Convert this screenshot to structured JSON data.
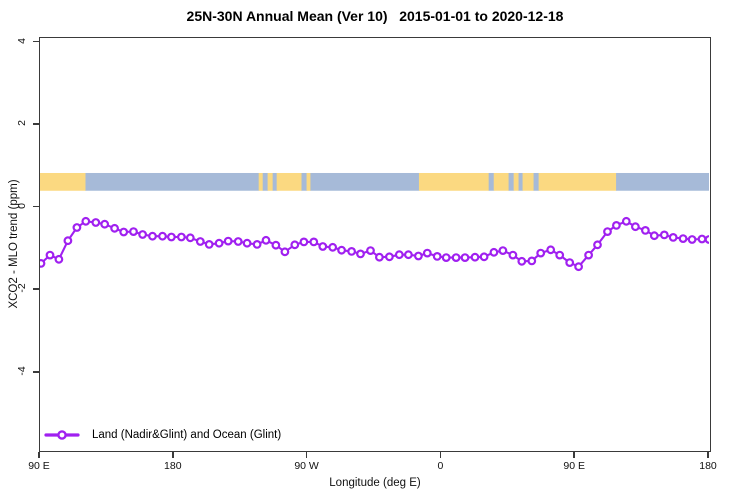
{
  "title": "25N-30N Annual Mean (Ver 10)   2015-01-01 to 2020-12-18",
  "chart_data": {
    "type": "line",
    "title": "25N-30N Annual Mean (Ver 10)   2015-01-01 to 2020-12-18",
    "xlabel": "Longitude (deg E)",
    "ylabel": "XCO2 - MLO trend (ppm)",
    "xlim_deg_along_axis": [
      0,
      450
    ],
    "ylim": [
      -5.87,
      4.11
    ],
    "grid": false,
    "x_ticks": [
      {
        "pos": 0,
        "label": "90 E"
      },
      {
        "pos": 90,
        "label": "180"
      },
      {
        "pos": 180,
        "label": "90 W"
      },
      {
        "pos": 270,
        "label": "0"
      },
      {
        "pos": 360,
        "label": "90 E"
      },
      {
        "pos": 450,
        "label": "180"
      }
    ],
    "y_ticks": [
      {
        "value": 4,
        "label": "4"
      },
      {
        "value": 2,
        "label": "2"
      },
      {
        "value": 0,
        "label": "0"
      },
      {
        "value": -2,
        "label": "-2"
      },
      {
        "value": -4,
        "label": "-4"
      }
    ],
    "legend": {
      "position": "bottom-left",
      "entries": [
        {
          "label": "Land (Nadir&Glint) and Ocean (Glint)",
          "color": "#A020F0",
          "marker": "open-circle"
        }
      ]
    },
    "colors": {
      "series": "#A020F0",
      "marker_fill": "#ffffff",
      "land_strip": "#FBD981",
      "ocean_strip": "#A6BAD8",
      "axis": "#3a3a3a"
    },
    "map_strip": {
      "description": "25N-30N latitude land/ocean strip drawn across plot",
      "value_range": [
        0.41,
        0.84
      ],
      "segments": [
        {
          "from": 0,
          "to": 30.8,
          "type": "land"
        },
        {
          "from": 30.8,
          "to": 147.3,
          "type": "ocean"
        },
        {
          "from": 147.3,
          "to": 150.0,
          "type": "land"
        },
        {
          "from": 150.0,
          "to": 153.3,
          "type": "ocean"
        },
        {
          "from": 153.3,
          "to": 156.7,
          "type": "land"
        },
        {
          "from": 156.7,
          "to": 159.4,
          "type": "ocean"
        },
        {
          "from": 159.4,
          "to": 176.1,
          "type": "land"
        },
        {
          "from": 176.1,
          "to": 179.5,
          "type": "ocean"
        },
        {
          "from": 179.5,
          "to": 182.1,
          "type": "land"
        },
        {
          "from": 182.1,
          "to": 255.1,
          "type": "ocean"
        },
        {
          "from": 255.1,
          "to": 302.0,
          "type": "land"
        },
        {
          "from": 302.0,
          "to": 305.4,
          "type": "ocean"
        },
        {
          "from": 305.4,
          "to": 315.4,
          "type": "land"
        },
        {
          "from": 315.4,
          "to": 318.8,
          "type": "ocean"
        },
        {
          "from": 318.8,
          "to": 322.1,
          "type": "land"
        },
        {
          "from": 322.1,
          "to": 324.8,
          "type": "ocean"
        },
        {
          "from": 324.8,
          "to": 332.2,
          "type": "land"
        },
        {
          "from": 332.2,
          "to": 335.6,
          "type": "ocean"
        },
        {
          "from": 335.6,
          "to": 387.7,
          "type": "land"
        },
        {
          "from": 387.7,
          "to": 450.0,
          "type": "ocean"
        }
      ]
    },
    "series": [
      {
        "name": "Land (Nadir&Glint) and Ocean (Glint)",
        "color": "#A020F0",
        "marker": "open-circle",
        "points": [
          [
            0.7,
            -1.35
          ],
          [
            6.7,
            -1.15
          ],
          [
            12.7,
            -1.25
          ],
          [
            18.8,
            -0.8
          ],
          [
            24.8,
            -0.48
          ],
          [
            30.8,
            -0.33
          ],
          [
            37.5,
            -0.36
          ],
          [
            43.5,
            -0.4
          ],
          [
            50.2,
            -0.5
          ],
          [
            56.3,
            -0.59
          ],
          [
            62.9,
            -0.58
          ],
          [
            69.0,
            -0.65
          ],
          [
            75.7,
            -0.69
          ],
          [
            82.4,
            -0.69
          ],
          [
            88.4,
            -0.71
          ],
          [
            95.1,
            -0.71
          ],
          [
            101.1,
            -0.73
          ],
          [
            107.8,
            -0.82
          ],
          [
            113.8,
            -0.89
          ],
          [
            120.5,
            -0.86
          ],
          [
            126.6,
            -0.81
          ],
          [
            133.3,
            -0.82
          ],
          [
            139.3,
            -0.86
          ],
          [
            146.0,
            -0.89
          ],
          [
            152.0,
            -0.79
          ],
          [
            158.7,
            -0.91
          ],
          [
            164.7,
            -1.07
          ],
          [
            171.4,
            -0.9
          ],
          [
            177.5,
            -0.83
          ],
          [
            184.2,
            -0.83
          ],
          [
            190.2,
            -0.94
          ],
          [
            196.9,
            -0.96
          ],
          [
            202.9,
            -1.03
          ],
          [
            209.6,
            -1.06
          ],
          [
            215.6,
            -1.12
          ],
          [
            222.3,
            -1.04
          ],
          [
            228.3,
            -1.2
          ],
          [
            235.0,
            -1.19
          ],
          [
            241.7,
            -1.14
          ],
          [
            247.8,
            -1.14
          ],
          [
            254.5,
            -1.17
          ],
          [
            260.5,
            -1.1
          ],
          [
            267.2,
            -1.18
          ],
          [
            273.2,
            -1.21
          ],
          [
            279.9,
            -1.21
          ],
          [
            285.9,
            -1.21
          ],
          [
            292.6,
            -1.2
          ],
          [
            298.7,
            -1.19
          ],
          [
            305.3,
            -1.08
          ],
          [
            311.4,
            -1.04
          ],
          [
            318.1,
            -1.15
          ],
          [
            324.1,
            -1.3
          ],
          [
            330.8,
            -1.29
          ],
          [
            336.8,
            -1.1
          ],
          [
            343.5,
            -1.02
          ],
          [
            349.6,
            -1.15
          ],
          [
            356.3,
            -1.33
          ],
          [
            362.3,
            -1.43
          ],
          [
            369.0,
            -1.15
          ],
          [
            375.0,
            -0.9
          ],
          [
            381.7,
            -0.58
          ],
          [
            387.7,
            -0.43
          ],
          [
            394.4,
            -0.33
          ],
          [
            400.5,
            -0.46
          ],
          [
            407.2,
            -0.55
          ],
          [
            413.2,
            -0.68
          ],
          [
            419.9,
            -0.66
          ],
          [
            425.9,
            -0.72
          ],
          [
            432.6,
            -0.75
          ],
          [
            438.6,
            -0.77
          ],
          [
            445.3,
            -0.76
          ],
          [
            450.0,
            -0.77
          ]
        ]
      }
    ]
  }
}
